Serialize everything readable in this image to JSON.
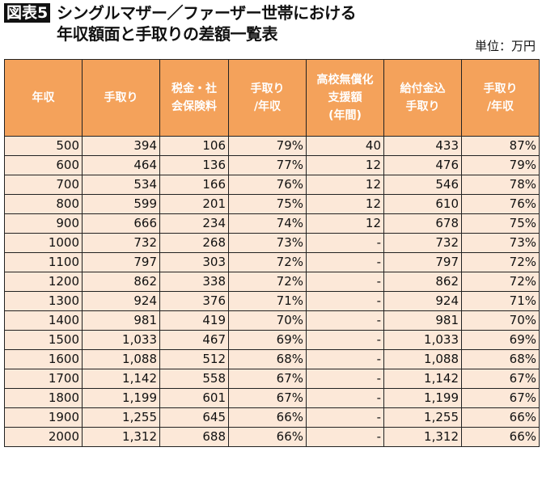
{
  "title": {
    "badge": "図表5",
    "line1": "シングルマザー／ファーザー世帯における",
    "line2": "年収額面と手取りの差額一覧表",
    "unit": "単位：万円"
  },
  "colors": {
    "header_bg": "#f4a25b",
    "cell_bg": "#fce8d8",
    "header_text": "#ffffff"
  },
  "table": {
    "headers": [
      [
        "年収"
      ],
      [
        "手取り"
      ],
      [
        "税金・社",
        "会保険料"
      ],
      [
        "手取り",
        "/年収"
      ],
      [
        "高校無償化",
        "支援額",
        "(年間)"
      ],
      [
        "給付金込",
        "手取り"
      ],
      [
        "手取り",
        "/年収"
      ]
    ],
    "rows": [
      [
        "500",
        "394",
        "106",
        "79%",
        "40",
        "433",
        "87%"
      ],
      [
        "600",
        "464",
        "136",
        "77%",
        "12",
        "476",
        "79%"
      ],
      [
        "700",
        "534",
        "166",
        "76%",
        "12",
        "546",
        "78%"
      ],
      [
        "800",
        "599",
        "201",
        "75%",
        "12",
        "610",
        "76%"
      ],
      [
        "900",
        "666",
        "234",
        "74%",
        "12",
        "678",
        "75%"
      ],
      [
        "1000",
        "732",
        "268",
        "73%",
        "-",
        "732",
        "73%"
      ],
      [
        "1100",
        "797",
        "303",
        "72%",
        "-",
        "797",
        "72%"
      ],
      [
        "1200",
        "862",
        "338",
        "72%",
        "-",
        "862",
        "72%"
      ],
      [
        "1300",
        "924",
        "376",
        "71%",
        "-",
        "924",
        "71%"
      ],
      [
        "1400",
        "981",
        "419",
        "70%",
        "-",
        "981",
        "70%"
      ],
      [
        "1500",
        "1,033",
        "467",
        "69%",
        "-",
        "1,033",
        "69%"
      ],
      [
        "1600",
        "1,088",
        "512",
        "68%",
        "-",
        "1,088",
        "68%"
      ],
      [
        "1700",
        "1,142",
        "558",
        "67%",
        "-",
        "1,142",
        "67%"
      ],
      [
        "1800",
        "1,199",
        "601",
        "67%",
        "-",
        "1,199",
        "67%"
      ],
      [
        "1900",
        "1,255",
        "645",
        "66%",
        "-",
        "1,255",
        "66%"
      ],
      [
        "2000",
        "1,312",
        "688",
        "66%",
        "-",
        "1,312",
        "66%"
      ]
    ]
  }
}
